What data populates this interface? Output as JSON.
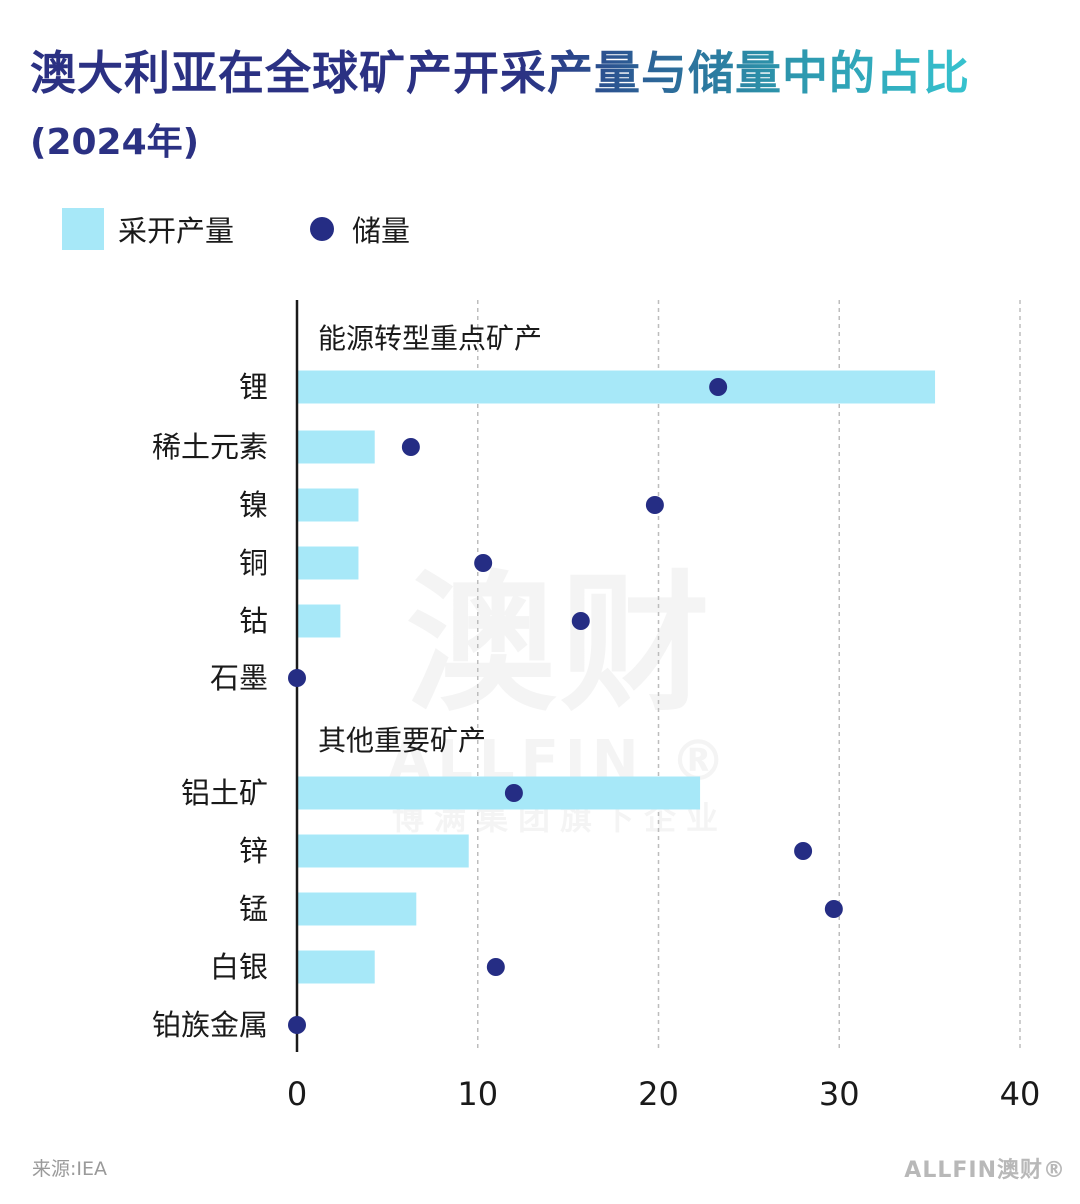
{
  "title": "澳大利亚在全球矿产开采产量与储量中的占比",
  "subtitle": "(2024年)",
  "legend": {
    "production_label": "采开产量",
    "reserves_label": "储量"
  },
  "colors": {
    "production": "#a7e8f8",
    "reserves": "#252d84",
    "title_start": "#2b3183",
    "title_end": "#36c3cf"
  },
  "chart_data": {
    "type": "bar",
    "orientation": "horizontal",
    "title": "澳大利亚在全球矿产开采产量与储量中的占比",
    "subtitle": "(2024年)",
    "xlim": [
      0,
      40
    ],
    "xticks": [
      0,
      10,
      20,
      30,
      40
    ],
    "grid": "vertical-dashed",
    "legend_position": "top-left",
    "groups": [
      {
        "name": "能源转型重点矿产",
        "items": [
          {
            "category": "锂",
            "production": 35.3,
            "reserves": 23.3
          },
          {
            "category": "稀土元素",
            "production": 4.3,
            "reserves": 6.3
          },
          {
            "category": "镍",
            "production": 3.4,
            "reserves": 19.8
          },
          {
            "category": "铜",
            "production": 3.4,
            "reserves": 10.3
          },
          {
            "category": "钴",
            "production": 2.4,
            "reserves": 15.7
          },
          {
            "category": "石墨",
            "production": 0,
            "reserves": 0
          }
        ]
      },
      {
        "name": "其他重要矿产",
        "items": [
          {
            "category": "铝土矿",
            "production": 22.3,
            "reserves": 12.0
          },
          {
            "category": "锌",
            "production": 9.5,
            "reserves": 28.0
          },
          {
            "category": "锰",
            "production": 6.6,
            "reserves": 29.7
          },
          {
            "category": "白银",
            "production": 4.3,
            "reserves": 11.0
          },
          {
            "category": "铂族金属",
            "production": 0,
            "reserves": 0
          }
        ]
      }
    ],
    "series": [
      {
        "name": "采开产量",
        "mark": "bar"
      },
      {
        "name": "储量",
        "mark": "dot"
      }
    ]
  },
  "watermark": {
    "main": "澳财",
    "brand": "ALLFIN ®",
    "tagline": "博满集团旗下企业"
  },
  "footer": {
    "source": "来源:IEA",
    "logo": "ALLFIN澳财®"
  }
}
